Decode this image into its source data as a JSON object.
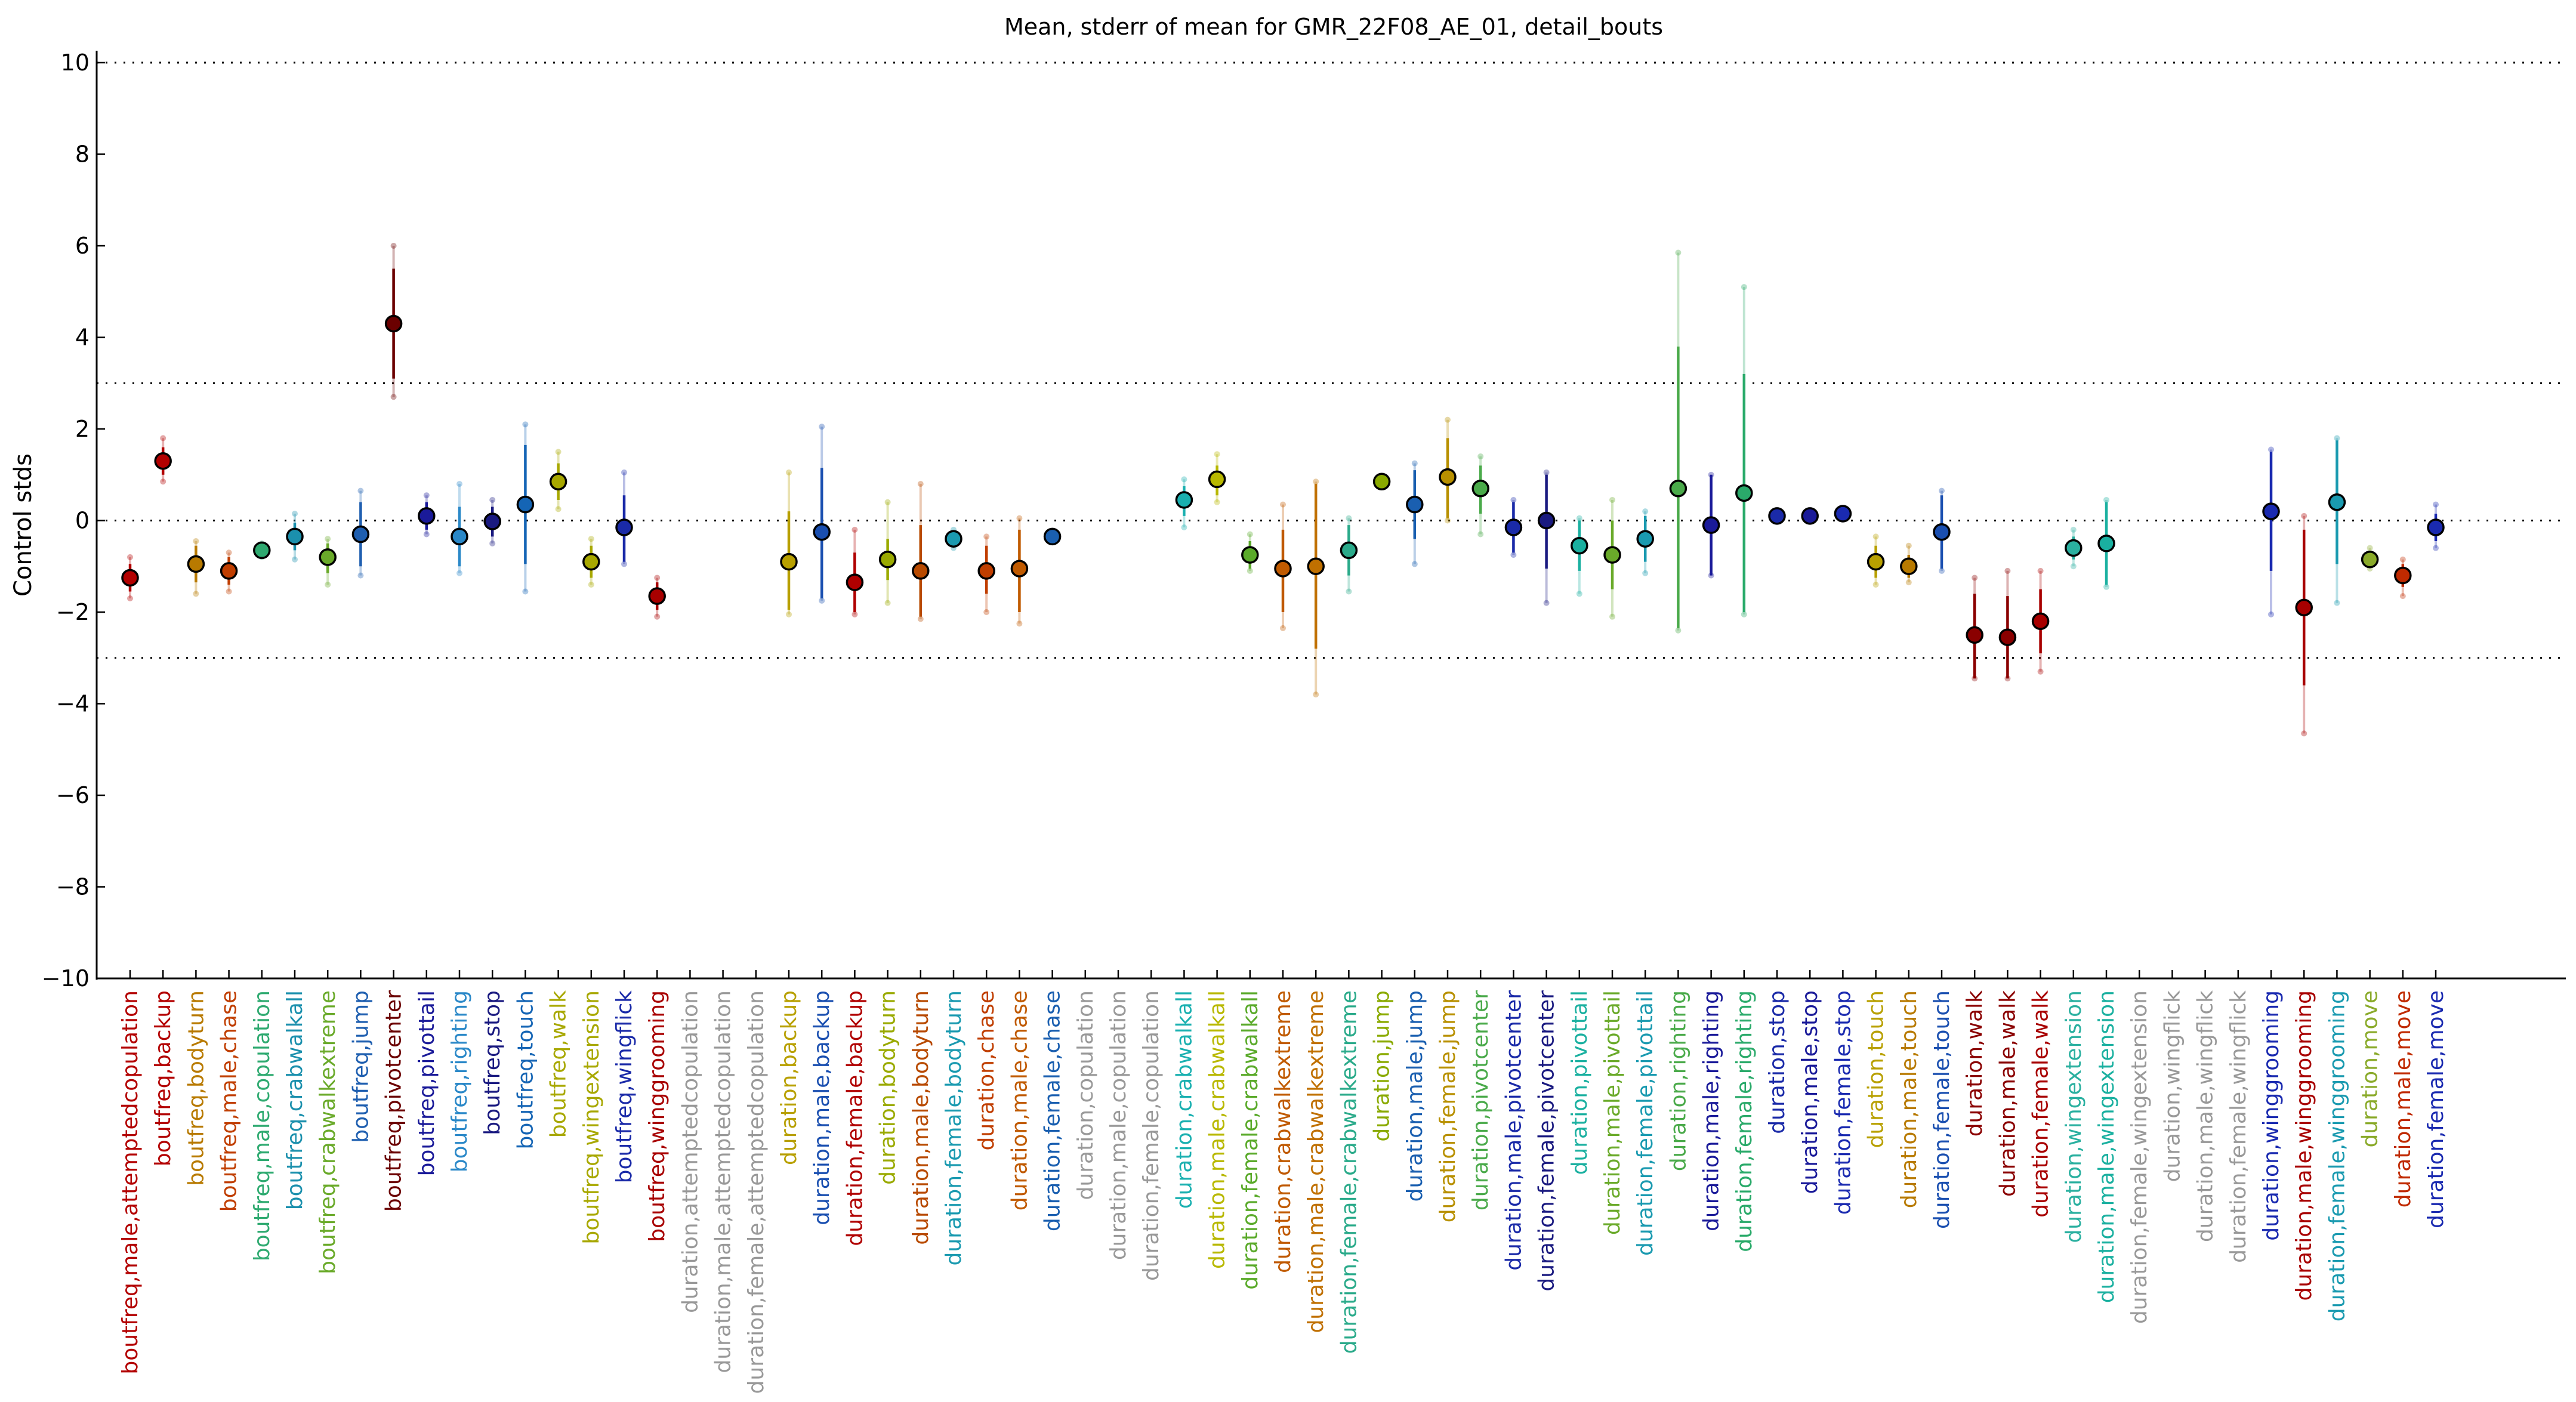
{
  "chart_data": {
    "type": "scatter",
    "title": "Mean, stderr of mean for GMR_22F08_AE_01, detail_bouts",
    "xlabel": "",
    "ylabel": "Control stds",
    "ylim": [
      -10,
      10
    ],
    "yticks": [
      -10,
      -8,
      -6,
      -4,
      -2,
      0,
      2,
      4,
      6,
      8,
      10
    ],
    "ytick_labels": [
      "−10",
      "−8",
      "−6",
      "−4",
      "−2",
      "0",
      "2",
      "4",
      "6",
      "8",
      "10"
    ],
    "reference_lines": [
      10,
      3,
      0,
      -3,
      -10
    ],
    "grid": false,
    "legend": "none",
    "points": [
      {
        "label": "boutfreq,male,attemptedcopulation",
        "color": "#b30000",
        "y": -1.25,
        "se_lo": -1.55,
        "se_hi": -0.95,
        "lo": -1.7,
        "hi": -0.8
      },
      {
        "label": "boutfreq,backup",
        "color": "#b30000",
        "y": 1.3,
        "se_lo": 1.0,
        "se_hi": 1.6,
        "lo": 0.85,
        "hi": 1.8
      },
      {
        "label": "boutfreq,bodyturn",
        "color": "#b87a00",
        "y": -0.95,
        "se_lo": -1.35,
        "se_hi": -0.55,
        "lo": -1.6,
        "hi": -0.45
      },
      {
        "label": "boutfreq,male,chase",
        "color": "#c03e00",
        "y": -1.1,
        "se_lo": -1.4,
        "se_hi": -0.8,
        "lo": -1.55,
        "hi": -0.7
      },
      {
        "label": "boutfreq,male,copulation",
        "color": "#2eaa70",
        "y": -0.65,
        "se_lo": -0.75,
        "se_hi": -0.55,
        "lo": -0.8,
        "hi": -0.5
      },
      {
        "label": "boutfreq,crabwalkall",
        "color": "#1b90ad",
        "y": -0.35,
        "se_lo": -0.65,
        "se_hi": -0.05,
        "lo": -0.85,
        "hi": 0.15
      },
      {
        "label": "boutfreq,crabwalkextreme",
        "color": "#6aaa2a",
        "y": -0.8,
        "se_lo": -1.15,
        "se_hi": -0.5,
        "lo": -1.4,
        "hi": -0.4
      },
      {
        "label": "boutfreq,jump",
        "color": "#1f5fb0",
        "y": -0.3,
        "se_lo": -1.0,
        "se_hi": 0.4,
        "lo": -1.2,
        "hi": 0.65
      },
      {
        "label": "boutfreq,pivotcenter",
        "color": "#6b0000",
        "y": 4.3,
        "se_lo": 3.1,
        "se_hi": 5.5,
        "lo": 2.7,
        "hi": 6.0
      },
      {
        "label": "boutfreq,pivottail",
        "color": "#1a1a99",
        "y": 0.1,
        "se_lo": -0.2,
        "se_hi": 0.4,
        "lo": -0.3,
        "hi": 0.55
      },
      {
        "label": "boutfreq,righting",
        "color": "#2a88c8",
        "y": -0.35,
        "se_lo": -1.0,
        "se_hi": 0.3,
        "lo": -1.15,
        "hi": 0.8
      },
      {
        "label": "boutfreq,stop",
        "color": "#1a1a80",
        "y": -0.02,
        "se_lo": -0.35,
        "se_hi": 0.3,
        "lo": -0.5,
        "hi": 0.45
      },
      {
        "label": "boutfreq,touch",
        "color": "#1565b5",
        "y": 0.35,
        "se_lo": -0.95,
        "se_hi": 1.65,
        "lo": -1.55,
        "hi": 2.1
      },
      {
        "label": "boutfreq,walk",
        "color": "#a8a800",
        "y": 0.85,
        "se_lo": 0.45,
        "se_hi": 1.25,
        "lo": 0.25,
        "hi": 1.5
      },
      {
        "label": "boutfreq,wingextension",
        "color": "#a8a800",
        "y": -0.9,
        "se_lo": -1.25,
        "se_hi": -0.55,
        "lo": -1.4,
        "hi": -0.4
      },
      {
        "label": "boutfreq,wingflick",
        "color": "#1a2aa8",
        "y": -0.15,
        "se_lo": -0.9,
        "se_hi": 0.55,
        "lo": -0.95,
        "hi": 1.05
      },
      {
        "label": "boutfreq,winggrooming",
        "color": "#a80000",
        "y": -1.65,
        "se_lo": -1.95,
        "se_hi": -1.35,
        "lo": -2.1,
        "hi": -1.25
      },
      {
        "label": "duration,attemptedcopulation",
        "color": "#999999",
        "y": null
      },
      {
        "label": "duration,male,attemptedcopulation",
        "color": "#999999",
        "y": null
      },
      {
        "label": "duration,female,attemptedcopulation",
        "color": "#999999",
        "y": null
      },
      {
        "label": "duration,backup",
        "color": "#b8a000",
        "y": -0.9,
        "se_lo": -1.95,
        "se_hi": 0.2,
        "lo": -2.05,
        "hi": 1.05
      },
      {
        "label": "duration,male,backup",
        "color": "#1a4fb0",
        "y": -0.25,
        "se_lo": -1.7,
        "se_hi": 1.15,
        "lo": -1.75,
        "hi": 2.05
      },
      {
        "label": "duration,female,backup",
        "color": "#b00000",
        "y": -1.35,
        "se_lo": -2.0,
        "se_hi": -0.7,
        "lo": -2.05,
        "hi": -0.2
      },
      {
        "label": "duration,bodyturn",
        "color": "#9aaa00",
        "y": -0.85,
        "se_lo": -1.3,
        "se_hi": -0.4,
        "lo": -1.8,
        "hi": 0.4
      },
      {
        "label": "duration,male,bodyturn",
        "color": "#b84a00",
        "y": -1.1,
        "se_lo": -2.1,
        "se_hi": -0.1,
        "lo": -2.15,
        "hi": 0.8
      },
      {
        "label": "duration,female,bodyturn",
        "color": "#1a9ab0",
        "y": -0.4,
        "se_lo": -0.55,
        "se_hi": -0.25,
        "lo": -0.6,
        "hi": -0.2
      },
      {
        "label": "duration,chase",
        "color": "#c03e00",
        "y": -1.1,
        "se_lo": -1.6,
        "se_hi": -0.55,
        "lo": -2.0,
        "hi": -0.35
      },
      {
        "label": "duration,male,chase",
        "color": "#c05a00",
        "y": -1.05,
        "se_lo": -2.0,
        "se_hi": -0.2,
        "lo": -2.25,
        "hi": 0.05
      },
      {
        "label": "duration,female,chase",
        "color": "#1a5fb0",
        "y": -0.35,
        "se_lo": -0.35,
        "se_hi": -0.35,
        "lo": -0.35,
        "hi": -0.35
      },
      {
        "label": "duration,copulation",
        "color": "#999999",
        "y": null
      },
      {
        "label": "duration,male,copulation",
        "color": "#999999",
        "y": null
      },
      {
        "label": "duration,female,copulation",
        "color": "#999999",
        "y": null
      },
      {
        "label": "duration,crabwalkall",
        "color": "#1ab0b0",
        "y": 0.45,
        "se_lo": 0.1,
        "se_hi": 0.75,
        "lo": -0.15,
        "hi": 0.9
      },
      {
        "label": "duration,male,crabwalkall",
        "color": "#b8b800",
        "y": 0.9,
        "se_lo": 0.55,
        "se_hi": 1.2,
        "lo": 0.4,
        "hi": 1.45
      },
      {
        "label": "duration,female,crabwalkall",
        "color": "#5aaa2a",
        "y": -0.75,
        "se_lo": -1.05,
        "se_hi": -0.45,
        "lo": -1.1,
        "hi": -0.3
      },
      {
        "label": "duration,crabwalkextreme",
        "color": "#c05a00",
        "y": -1.05,
        "se_lo": -2.0,
        "se_hi": -0.2,
        "lo": -2.35,
        "hi": 0.35
      },
      {
        "label": "duration,male,crabwalkextreme",
        "color": "#c07000",
        "y": -1.0,
        "se_lo": -2.8,
        "se_hi": 0.8,
        "lo": -3.8,
        "hi": 0.85
      },
      {
        "label": "duration,female,crabwalkextreme",
        "color": "#2aaa8a",
        "y": -0.65,
        "se_lo": -1.2,
        "se_hi": -0.1,
        "lo": -1.55,
        "hi": 0.05
      },
      {
        "label": "duration,jump",
        "color": "#8aaa00",
        "y": 0.85,
        "se_lo": 0.85,
        "se_hi": 0.85,
        "lo": 0.85,
        "hi": 0.85
      },
      {
        "label": "duration,male,jump",
        "color": "#1a5fb0",
        "y": 0.35,
        "se_lo": -0.4,
        "se_hi": 1.1,
        "lo": -0.95,
        "hi": 1.25
      },
      {
        "label": "duration,female,jump",
        "color": "#b89000",
        "y": 0.95,
        "se_lo": 0.05,
        "se_hi": 1.8,
        "lo": 0.0,
        "hi": 2.2
      },
      {
        "label": "duration,pivotcenter",
        "color": "#4aaa4a",
        "y": 0.7,
        "se_lo": 0.15,
        "se_hi": 1.2,
        "lo": -0.3,
        "hi": 1.4
      },
      {
        "label": "duration,male,pivotcenter",
        "color": "#1a2aa8",
        "y": -0.15,
        "se_lo": -0.7,
        "se_hi": 0.4,
        "lo": -0.75,
        "hi": 0.45
      },
      {
        "label": "duration,female,pivotcenter",
        "color": "#1a1a80",
        "y": 0.0,
        "se_lo": -1.05,
        "se_hi": 1.0,
        "lo": -1.8,
        "hi": 1.05
      },
      {
        "label": "duration,pivottail",
        "color": "#1ab0a0",
        "y": -0.55,
        "se_lo": -1.1,
        "se_hi": 0.0,
        "lo": -1.6,
        "hi": 0.05
      },
      {
        "label": "duration,male,pivottail",
        "color": "#6aaa2a",
        "y": -0.75,
        "se_lo": -1.5,
        "se_hi": 0.0,
        "lo": -2.1,
        "hi": 0.45
      },
      {
        "label": "duration,female,pivottail",
        "color": "#1a9ab0",
        "y": -0.4,
        "se_lo": -0.9,
        "se_hi": 0.1,
        "lo": -1.15,
        "hi": 0.2
      },
      {
        "label": "duration,righting",
        "color": "#4aaa4a",
        "y": 0.7,
        "se_lo": -2.35,
        "se_hi": 3.8,
        "lo": -2.4,
        "hi": 5.85
      },
      {
        "label": "duration,male,righting",
        "color": "#1a1a99",
        "y": -0.1,
        "se_lo": -1.2,
        "se_hi": 1.0,
        "lo": -1.2,
        "hi": 1.0
      },
      {
        "label": "duration,female,righting",
        "color": "#2aaa6a",
        "y": 0.6,
        "se_lo": -2.0,
        "se_hi": 3.2,
        "lo": -2.05,
        "hi": 5.1
      },
      {
        "label": "duration,stop",
        "color": "#1a2aa8",
        "y": 0.1,
        "se_lo": 0.1,
        "se_hi": 0.1,
        "lo": 0.1,
        "hi": 0.1
      },
      {
        "label": "duration,male,stop",
        "color": "#1a1a99",
        "y": 0.1,
        "se_lo": 0.1,
        "se_hi": 0.1,
        "lo": 0.1,
        "hi": 0.1
      },
      {
        "label": "duration,female,stop",
        "color": "#1a2ab0",
        "y": 0.15,
        "se_lo": 0.15,
        "se_hi": 0.15,
        "lo": 0.15,
        "hi": 0.15
      },
      {
        "label": "duration,touch",
        "color": "#b8a000",
        "y": -0.9,
        "se_lo": -1.25,
        "se_hi": -0.55,
        "lo": -1.4,
        "hi": -0.35
      },
      {
        "label": "duration,male,touch",
        "color": "#b87a00",
        "y": -1.0,
        "se_lo": -1.25,
        "se_hi": -0.75,
        "lo": -1.35,
        "hi": -0.55
      },
      {
        "label": "duration,female,touch",
        "color": "#1a4fb0",
        "y": -0.25,
        "se_lo": -1.05,
        "se_hi": 0.55,
        "lo": -1.1,
        "hi": 0.65
      },
      {
        "label": "duration,walk",
        "color": "#8a0000",
        "y": -2.5,
        "se_lo": -3.45,
        "se_hi": -1.6,
        "lo": -3.45,
        "hi": -1.25
      },
      {
        "label": "duration,male,walk",
        "color": "#8a0000",
        "y": -2.55,
        "se_lo": -3.45,
        "se_hi": -1.65,
        "lo": -3.45,
        "hi": -1.1
      },
      {
        "label": "duration,female,walk",
        "color": "#a80000",
        "y": -2.2,
        "se_lo": -2.9,
        "se_hi": -1.5,
        "lo": -3.3,
        "hi": -1.1
      },
      {
        "label": "duration,wingextension",
        "color": "#2ab0a0",
        "y": -0.6,
        "se_lo": -0.85,
        "se_hi": -0.35,
        "lo": -1.0,
        "hi": -0.2
      },
      {
        "label": "duration,male,wingextension",
        "color": "#1ab0a0",
        "y": -0.5,
        "se_lo": -1.4,
        "se_hi": 0.4,
        "lo": -1.45,
        "hi": 0.45
      },
      {
        "label": "duration,female,wingextension",
        "color": "#999999",
        "y": null
      },
      {
        "label": "duration,wingflick",
        "color": "#999999",
        "y": null
      },
      {
        "label": "duration,male,wingflick",
        "color": "#999999",
        "y": null
      },
      {
        "label": "duration,female,wingflick",
        "color": "#999999",
        "y": null
      },
      {
        "label": "duration,winggrooming",
        "color": "#1a2ab0",
        "y": 0.2,
        "se_lo": -1.1,
        "se_hi": 1.5,
        "lo": -2.05,
        "hi": 1.55
      },
      {
        "label": "duration,male,winggrooming",
        "color": "#a80000",
        "y": -1.9,
        "se_lo": -3.6,
        "se_hi": -0.2,
        "lo": -4.65,
        "hi": 0.1
      },
      {
        "label": "duration,female,winggrooming",
        "color": "#1a9ab0",
        "y": 0.4,
        "se_lo": -0.95,
        "se_hi": 1.75,
        "lo": -1.8,
        "hi": 1.8
      },
      {
        "label": "duration,move",
        "color": "#8aaa2a",
        "y": -0.85,
        "se_lo": -1.0,
        "se_hi": -0.7,
        "lo": -1.05,
        "hi": -0.6
      },
      {
        "label": "duration,male,move",
        "color": "#c02a00",
        "y": -1.2,
        "se_lo": -1.45,
        "se_hi": -0.95,
        "lo": -1.65,
        "hi": -0.85
      },
      {
        "label": "duration,female,move",
        "color": "#1a2ab0",
        "y": -0.15,
        "se_lo": -0.45,
        "se_hi": 0.15,
        "lo": -0.6,
        "hi": 0.35
      }
    ]
  }
}
